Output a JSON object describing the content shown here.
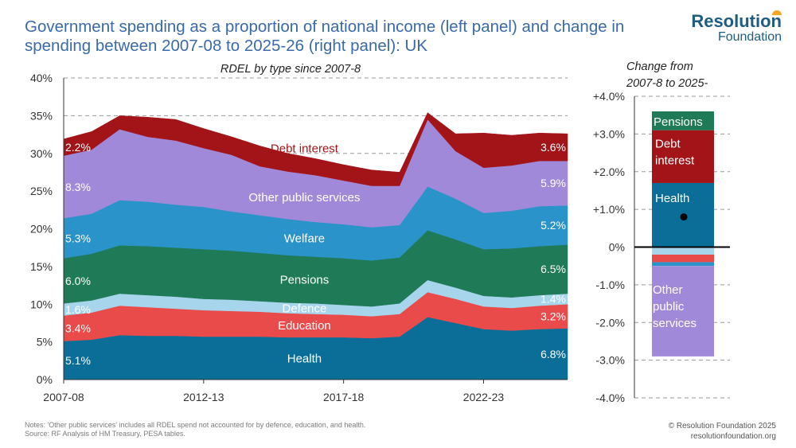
{
  "title": "Government spending as a proportion of national income (left panel) and change in spending between 2007-08 to 2025-26 (right panel): UK",
  "logo": {
    "line1": "Resolution",
    "line2": "Foundation"
  },
  "notes": {
    "line1": "Notes: 'Other public services' includes all RDEL spend not accounted for by defence, education, and health.",
    "line2": "Source: RF Analysis of HM Treasury, PESA tables."
  },
  "footer": {
    "copyright": "© Resolution Foundation 2025",
    "url": "resolutionfoundation.org"
  },
  "colors": {
    "health": "#0b6e99",
    "education": "#e94b4b",
    "defence": "#a6d5ec",
    "pensions": "#1f7a57",
    "welfare": "#2a93c9",
    "other": "#a089d8",
    "debt": "#a31418",
    "zero_line": "#000000",
    "grid": "#999999"
  },
  "chart_data": [
    {
      "type": "area",
      "stacked": true,
      "title": "RDEL by type since 2007-8",
      "x": [
        2007,
        2008,
        2009,
        2010,
        2011,
        2012,
        2013,
        2014,
        2015,
        2016,
        2017,
        2018,
        2019,
        2020,
        2021,
        2022,
        2023,
        2024,
        2025
      ],
      "xticks": [
        {
          "value": 2007,
          "label": "2007-08"
        },
        {
          "value": 2012,
          "label": "2012-13"
        },
        {
          "value": 2017,
          "label": "2017-18"
        },
        {
          "value": 2022,
          "label": "2022-23"
        }
      ],
      "ylim": [
        0,
        40
      ],
      "yticks": [
        0,
        5,
        10,
        15,
        20,
        25,
        30,
        35,
        40
      ],
      "ytick_labels": [
        "0%",
        "5%",
        "10%",
        "15%",
        "20%",
        "25%",
        "30%",
        "35%",
        "40%"
      ],
      "grid": "dashed horizontal",
      "series": [
        {
          "key": "health",
          "name": "Health",
          "values": [
            5.1,
            5.3,
            5.9,
            5.8,
            5.8,
            5.7,
            5.7,
            5.7,
            5.6,
            5.6,
            5.6,
            5.5,
            5.7,
            8.3,
            7.5,
            6.7,
            6.5,
            6.7,
            6.8
          ]
        },
        {
          "key": "education",
          "name": "Education",
          "values": [
            3.4,
            3.6,
            3.9,
            3.8,
            3.6,
            3.5,
            3.4,
            3.3,
            3.2,
            3.1,
            3.0,
            2.9,
            3.0,
            3.3,
            3.2,
            3.0,
            3.0,
            3.1,
            3.2
          ]
        },
        {
          "key": "defence",
          "name": "Defence",
          "values": [
            1.6,
            1.6,
            1.6,
            1.6,
            1.6,
            1.5,
            1.5,
            1.4,
            1.4,
            1.4,
            1.3,
            1.3,
            1.4,
            1.6,
            1.5,
            1.4,
            1.4,
            1.4,
            1.4
          ]
        },
        {
          "key": "pensions",
          "name": "Pensions",
          "values": [
            6.0,
            6.2,
            6.4,
            6.5,
            6.5,
            6.6,
            6.5,
            6.4,
            6.3,
            6.2,
            6.2,
            6.1,
            6.1,
            6.6,
            6.4,
            6.2,
            6.5,
            6.5,
            6.5
          ]
        },
        {
          "key": "welfare",
          "name": "Welfare",
          "values": [
            5.3,
            5.3,
            6.0,
            5.9,
            5.7,
            5.6,
            5.2,
            5.0,
            4.8,
            4.6,
            4.5,
            4.4,
            4.3,
            5.8,
            5.4,
            4.8,
            5.0,
            5.3,
            5.2
          ]
        },
        {
          "key": "other",
          "name": "Other public services",
          "values": [
            8.3,
            8.5,
            9.4,
            8.6,
            8.5,
            7.8,
            7.5,
            6.5,
            6.3,
            6.2,
            5.8,
            5.5,
            5.2,
            8.9,
            6.3,
            6.0,
            6.0,
            6.0,
            5.9
          ]
        },
        {
          "key": "debt",
          "name": "Debt interest",
          "values": [
            2.2,
            2.4,
            1.8,
            2.6,
            2.8,
            2.6,
            2.4,
            2.7,
            2.4,
            2.2,
            2.1,
            2.1,
            1.8,
            0.9,
            2.3,
            4.6,
            4.0,
            3.7,
            3.6
          ]
        }
      ],
      "start_labels": [
        "5.1%",
        "3.4%",
        "1.6%",
        "6.0%",
        "5.3%",
        "8.3%",
        "2.2%"
      ],
      "end_labels": [
        "6.8%",
        "3.2%",
        "1.4%",
        "6.5%",
        "5.2%",
        "5.9%",
        "3.6%"
      ]
    },
    {
      "type": "bar",
      "stacked": true,
      "title_line1": "Change from",
      "title_line2": "2007-8 to 2025-",
      "ylim": [
        -4,
        4
      ],
      "yticks": [
        -4,
        -3,
        -2,
        -1,
        0,
        1,
        2,
        3,
        4
      ],
      "ytick_labels": [
        "-4.0%",
        "-3.0%",
        "-2.0%",
        "-1.0%",
        "0%",
        "+1.0%",
        "+2.0%",
        "+3.0%",
        "+4.0%"
      ],
      "positive_segments": [
        {
          "key": "health",
          "name": "Health",
          "value": 1.7
        },
        {
          "key": "debt",
          "name": "Debt interest",
          "value": 1.4
        },
        {
          "key": "pensions",
          "name": "Pensions",
          "value": 0.5
        }
      ],
      "negative_segments": [
        {
          "key": "defence",
          "name": "Defence",
          "value": -0.2
        },
        {
          "key": "education",
          "name": "Education",
          "value": -0.2
        },
        {
          "key": "welfare",
          "name": "Welfare",
          "value": -0.1
        },
        {
          "key": "other",
          "name": "Other public services",
          "value": -2.4
        }
      ],
      "net_change": 0.8,
      "segment_labels": {
        "pensions": "Pensions",
        "debt_line1": "Debt",
        "debt_line2": "interest",
        "health": "Health",
        "other_line1": "Other",
        "other_line2": "public",
        "other_line3": "services"
      }
    }
  ]
}
